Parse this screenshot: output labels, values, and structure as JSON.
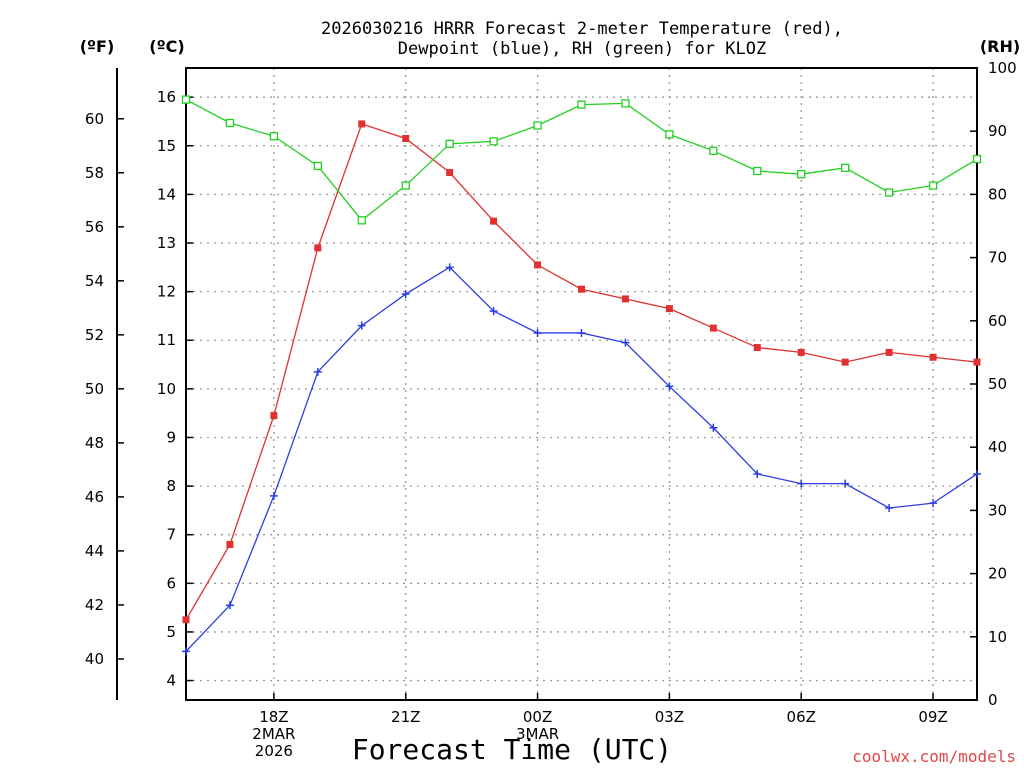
{
  "chart_data": {
    "type": "line",
    "title_line1": "2026030216 HRRR Forecast 2-meter Temperature (red),",
    "title_line2": "Dewpoint (blue), RH (green) for KLOZ",
    "units": {
      "fahrenheit": "(ºF)",
      "celsius": "(ºC)",
      "rh": "(RH)"
    },
    "xlabel": "Forecast Time (UTC)",
    "credit": "coolwx.com/models",
    "x_hours": [
      0,
      1,
      2,
      3,
      4,
      5,
      6,
      7,
      8,
      9,
      10,
      11,
      12,
      13,
      14,
      15,
      16,
      17,
      18
    ],
    "xlim": [
      0,
      18
    ],
    "x_ticks": [
      {
        "hour": 2,
        "lines": [
          "18Z",
          "2MAR",
          "2026"
        ]
      },
      {
        "hour": 5,
        "lines": [
          "21Z"
        ]
      },
      {
        "hour": 8,
        "lines": [
          "00Z",
          "3MAR"
        ]
      },
      {
        "hour": 11,
        "lines": [
          "03Z"
        ]
      },
      {
        "hour": 14,
        "lines": [
          "06Z"
        ]
      },
      {
        "hour": 17,
        "lines": [
          "09Z"
        ]
      }
    ],
    "celsius_axis": {
      "ylim": [
        3.6,
        16.6
      ],
      "ticks": [
        4,
        5,
        6,
        7,
        8,
        9,
        10,
        11,
        12,
        13,
        14,
        15,
        16
      ]
    },
    "fahrenheit_axis": {
      "ticks": [
        40,
        42,
        44,
        46,
        48,
        50,
        52,
        54,
        56,
        58,
        60
      ]
    },
    "rh_axis": {
      "ylim": [
        0,
        100
      ],
      "ticks": [
        0,
        10,
        20,
        30,
        40,
        50,
        60,
        70,
        80,
        90,
        100
      ]
    },
    "series": [
      {
        "name": "Temperature",
        "axis": "celsius",
        "color": "#e03030",
        "marker": "filled-square",
        "values": [
          5.25,
          6.8,
          9.45,
          12.9,
          15.45,
          15.15,
          14.45,
          13.45,
          12.55,
          12.05,
          11.85,
          11.65,
          11.25,
          10.85,
          10.75,
          10.55,
          10.75,
          10.65,
          10.55
        ]
      },
      {
        "name": "Dewpoint",
        "axis": "celsius",
        "color": "#2b3ee0",
        "marker": "plus",
        "values": [
          4.6,
          5.55,
          7.8,
          10.35,
          11.3,
          11.95,
          12.5,
          11.6,
          11.15,
          11.15,
          10.95,
          10.05,
          9.2,
          8.25,
          8.05,
          8.05,
          7.55,
          7.65,
          8.25
        ]
      },
      {
        "name": "RH",
        "axis": "rh",
        "color": "#22d022",
        "marker": "open-square",
        "values": [
          95,
          91.3,
          89.2,
          84.5,
          75.9,
          81.4,
          88,
          88.4,
          90.9,
          94.2,
          94.4,
          89.5,
          86.9,
          83.7,
          83.2,
          84.2,
          80.3,
          81.4,
          85.6
        ]
      }
    ]
  }
}
